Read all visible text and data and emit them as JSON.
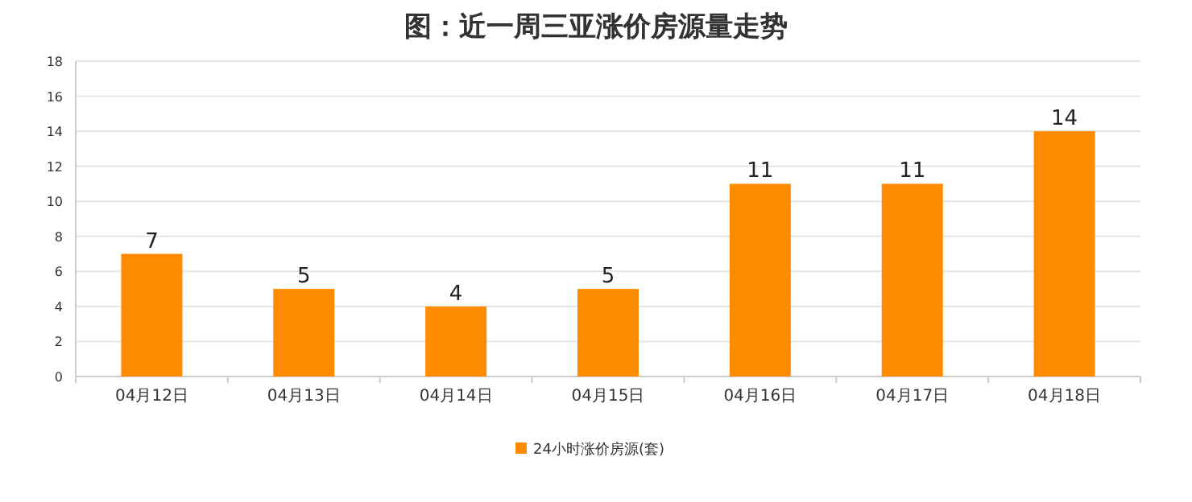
{
  "chart_data": {
    "type": "bar",
    "title": "图：近一周三亚涨价房源量走势",
    "categories": [
      "04月12日",
      "04月13日",
      "04月14日",
      "04月15日",
      "04月16日",
      "04月17日",
      "04月18日"
    ],
    "series": [
      {
        "name": "24小时涨价房源(套)",
        "color": "#ff8c00",
        "values": [
          7,
          5,
          4,
          5,
          11,
          11,
          14
        ]
      }
    ],
    "ylim": [
      0,
      18
    ],
    "yticks": [
      0,
      2,
      4,
      6,
      8,
      10,
      12,
      14,
      16,
      18
    ],
    "grid": "y",
    "legend": "bottom",
    "data_labels": true
  }
}
